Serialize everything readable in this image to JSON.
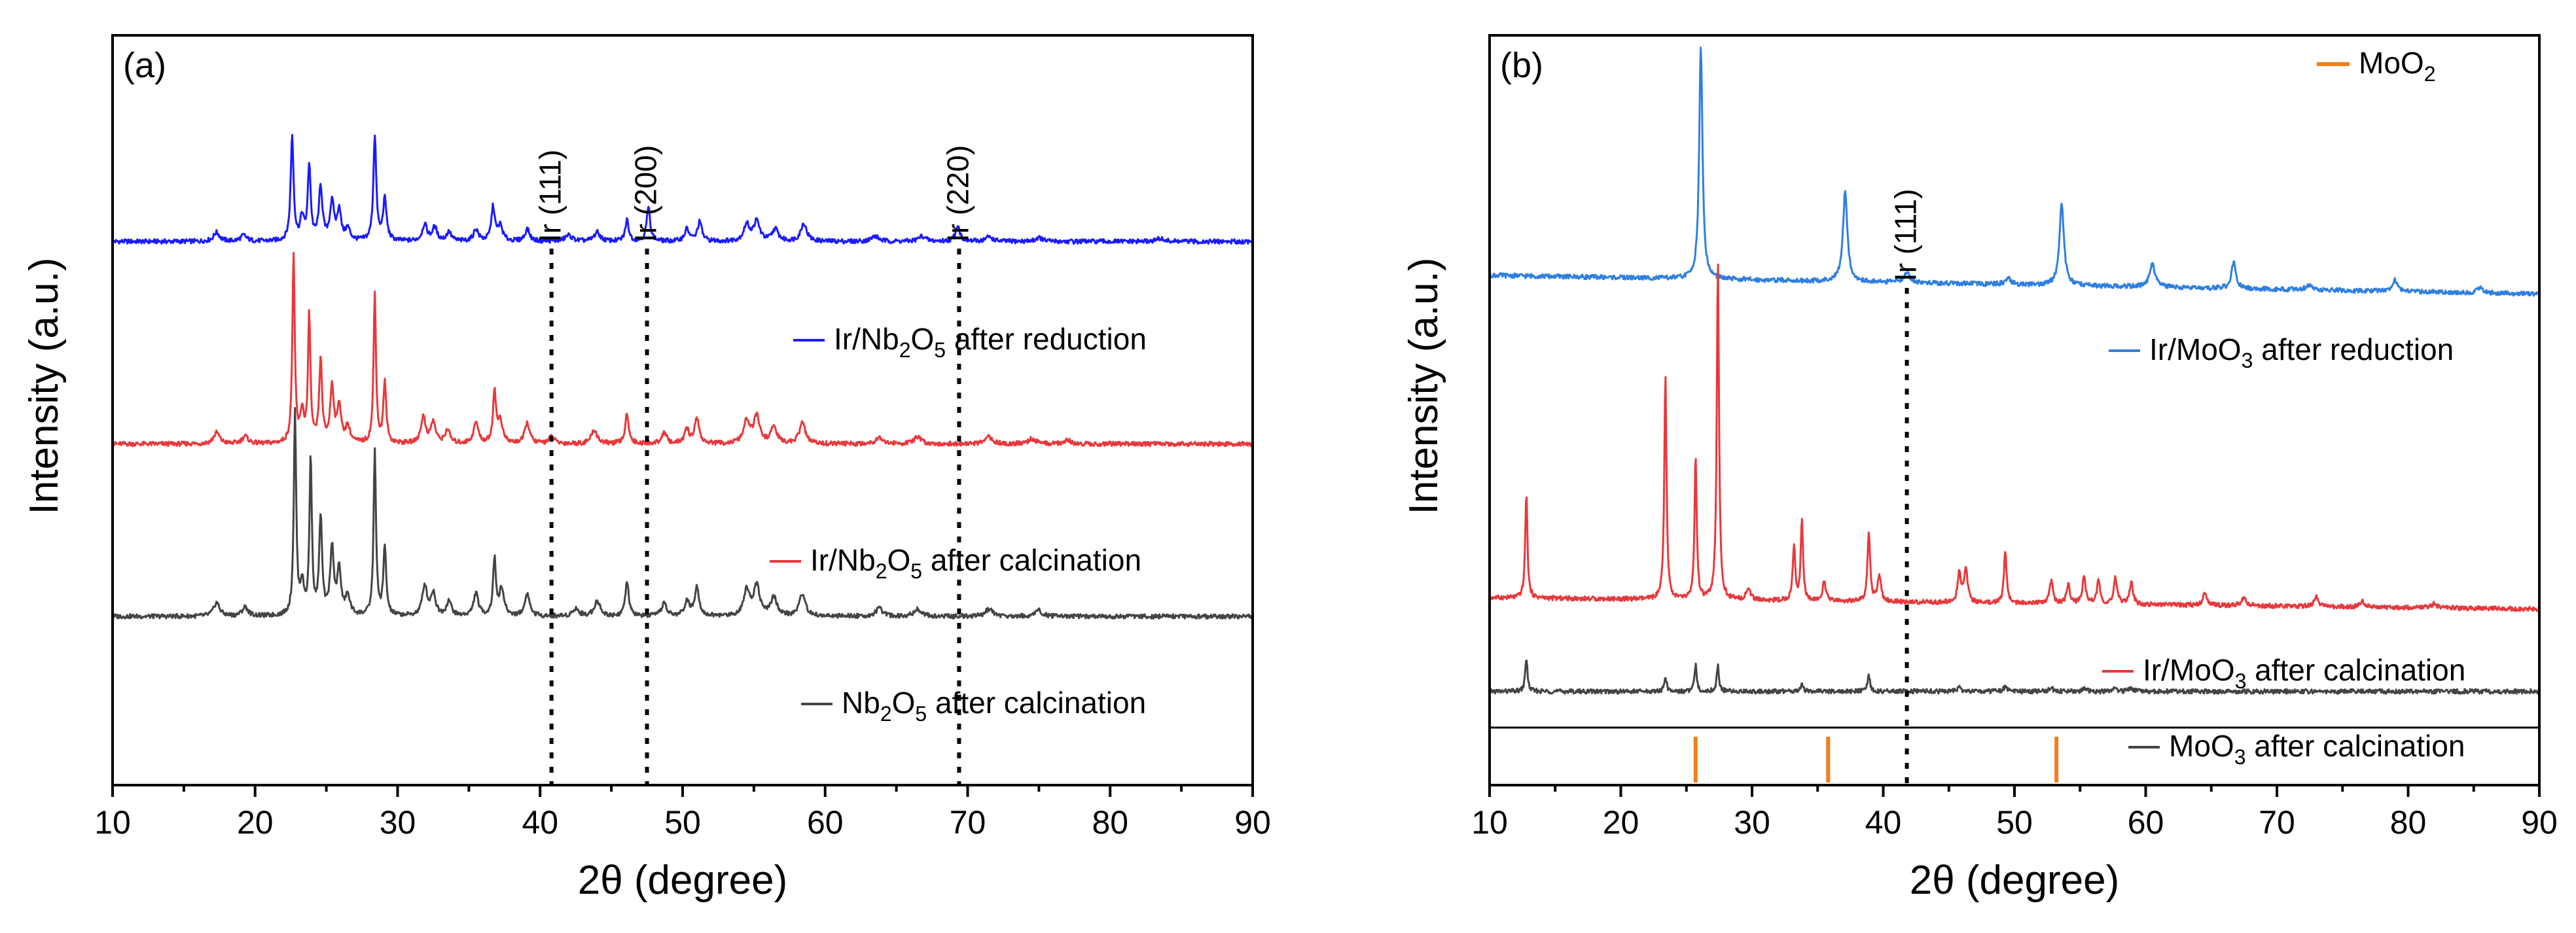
{
  "chart_data": [
    {
      "panel": "(a)",
      "type": "line",
      "xlabel": "2θ (degree)",
      "ylabel": "Intensity (a.u.)",
      "xlim": [
        10,
        90
      ],
      "ylim": [
        0,
        100
      ],
      "xticks": [
        10,
        20,
        30,
        40,
        50,
        60,
        70,
        80,
        90
      ],
      "y_tick_labels": false,
      "stacked_offsets": true,
      "series": [
        {
          "name": "Ir/Nb2O5 after reduction",
          "legend_main": "Ir/Nb",
          "legend_sub1": "2",
          "legend_mid": "O",
          "legend_sub2": "5",
          "legend_tail": " after reduction",
          "color": "#1a1aff",
          "baseline": 72.5,
          "peaks": [
            [
              17.3,
              1.2,
              0.25
            ],
            [
              19.2,
              0.8,
              0.25
            ],
            [
              22.6,
              14,
              0.12
            ],
            [
              23.3,
              3,
              0.15
            ],
            [
              23.8,
              10,
              0.12
            ],
            [
              24.6,
              7,
              0.15
            ],
            [
              25.4,
              5,
              0.18
            ],
            [
              25.9,
              4,
              0.15
            ],
            [
              26.5,
              1.6,
              0.2
            ],
            [
              28.4,
              14,
              0.12
            ],
            [
              29.1,
              5.5,
              0.15
            ],
            [
              31.9,
              2.2,
              0.2
            ],
            [
              32.6,
              1.8,
              0.2
            ],
            [
              33.6,
              1.2,
              0.2
            ],
            [
              35.5,
              1.6,
              0.2
            ],
            [
              36.7,
              4.5,
              0.15
            ],
            [
              37.2,
              2,
              0.2
            ],
            [
              39.1,
              1.6,
              0.2
            ],
            [
              42.0,
              0.8,
              0.3
            ],
            [
              44.0,
              1.2,
              0.25
            ],
            [
              46.1,
              2.8,
              0.15
            ],
            [
              47.6,
              4.5,
              0.15
            ],
            [
              50.3,
              1.6,
              0.2
            ],
            [
              51.2,
              2.6,
              0.18
            ],
            [
              54.5,
              2.2,
              0.25
            ],
            [
              55.2,
              2.6,
              0.25
            ],
            [
              56.5,
              1.6,
              0.25
            ],
            [
              58.5,
              2.4,
              0.25
            ],
            [
              63.5,
              0.7,
              0.3
            ],
            [
              66.8,
              0.7,
              0.3
            ],
            [
              69.3,
              2.2,
              0.18
            ],
            [
              71.5,
              0.6,
              0.3
            ],
            [
              75.0,
              0.5,
              0.3
            ],
            [
              83.5,
              0.4,
              0.3
            ]
          ]
        },
        {
          "name": "Ir/Nb2O5 after calcination",
          "legend_main": "Ir/Nb",
          "legend_sub1": "2",
          "legend_mid": "O",
          "legend_sub2": "5",
          "legend_tail": " after calcination",
          "color": "#e8383c",
          "baseline": 45.5,
          "peaks": [
            [
              17.3,
              1.5,
              0.25
            ],
            [
              19.3,
              1,
              0.25
            ],
            [
              22.7,
              25,
              0.1
            ],
            [
              23.3,
              4,
              0.15
            ],
            [
              23.8,
              17,
              0.1
            ],
            [
              24.6,
              11,
              0.12
            ],
            [
              25.4,
              7.5,
              0.15
            ],
            [
              25.9,
              5,
              0.15
            ],
            [
              26.5,
              2.2,
              0.2
            ],
            [
              28.4,
              20,
              0.1
            ],
            [
              29.1,
              8,
              0.12
            ],
            [
              31.8,
              3.5,
              0.2
            ],
            [
              32.5,
              2.8,
              0.2
            ],
            [
              33.5,
              1.8,
              0.2
            ],
            [
              35.5,
              2.8,
              0.2
            ],
            [
              36.8,
              7,
              0.12
            ],
            [
              37.2,
              3,
              0.2
            ],
            [
              39.1,
              2.8,
              0.2
            ],
            [
              40.8,
              0.9,
              0.25
            ],
            [
              43.8,
              1.8,
              0.25
            ],
            [
              46.1,
              4,
              0.15
            ],
            [
              48.7,
              1.5,
              0.2
            ],
            [
              50.3,
              1.8,
              0.2
            ],
            [
              51.0,
              3.5,
              0.18
            ],
            [
              54.5,
              3,
              0.25
            ],
            [
              55.2,
              3.5,
              0.25
            ],
            [
              56.4,
              2.2,
              0.25
            ],
            [
              58.4,
              2.8,
              0.25
            ],
            [
              63.8,
              0.9,
              0.3
            ],
            [
              66.5,
              0.9,
              0.3
            ],
            [
              71.5,
              0.9,
              0.3
            ],
            [
              74.5,
              0.7,
              0.3
            ],
            [
              77.0,
              0.5,
              0.3
            ]
          ]
        },
        {
          "name": "Nb2O5 after calcination",
          "legend_main": "Nb",
          "legend_sub1": "2",
          "legend_mid": "O",
          "legend_sub2": "5",
          "legend_tail": " after calcination",
          "color": "#444444",
          "baseline": 22.5,
          "peaks": [
            [
              17.3,
              1.8,
              0.25
            ],
            [
              19.3,
              1.2,
              0.25
            ],
            [
              22.8,
              27,
              0.1
            ],
            [
              23.3,
              4,
              0.15
            ],
            [
              23.9,
              21,
              0.1
            ],
            [
              24.6,
              13,
              0.12
            ],
            [
              25.4,
              9,
              0.15
            ],
            [
              25.9,
              6,
              0.15
            ],
            [
              26.5,
              2.5,
              0.2
            ],
            [
              28.4,
              22,
              0.1
            ],
            [
              29.1,
              9,
              0.12
            ],
            [
              31.9,
              4,
              0.2
            ],
            [
              32.5,
              3,
              0.2
            ],
            [
              33.6,
              2,
              0.2
            ],
            [
              35.5,
              3,
              0.2
            ],
            [
              36.8,
              7.5,
              0.12
            ],
            [
              37.3,
              3.5,
              0.2
            ],
            [
              39.1,
              3,
              0.2
            ],
            [
              42.5,
              1,
              0.25
            ],
            [
              44.0,
              2,
              0.25
            ],
            [
              46.1,
              4.5,
              0.15
            ],
            [
              48.7,
              1.8,
              0.2
            ],
            [
              50.3,
              2,
              0.2
            ],
            [
              51.0,
              4,
              0.18
            ],
            [
              54.5,
              3.5,
              0.25
            ],
            [
              55.2,
              4,
              0.25
            ],
            [
              56.4,
              2.5,
              0.25
            ],
            [
              58.4,
              3,
              0.25
            ],
            [
              63.8,
              1,
              0.3
            ],
            [
              66.5,
              1,
              0.3
            ],
            [
              71.5,
              1,
              0.3
            ],
            [
              75.0,
              0.8,
              0.3
            ]
          ]
        }
      ],
      "reference_lines": [
        {
          "x": 40.8,
          "label": "Ir (111)"
        },
        {
          "x": 47.5,
          "label": "Ir (200)"
        },
        {
          "x": 69.4,
          "label": "Ir (220)"
        }
      ]
    },
    {
      "panel": "(b)",
      "type": "line",
      "xlabel": "2θ (degree)",
      "ylabel": "Intensity (a.u.)",
      "xlim": [
        10,
        90
      ],
      "ylim": [
        0,
        100
      ],
      "xticks": [
        10,
        20,
        30,
        40,
        50,
        60,
        70,
        80,
        90
      ],
      "y_tick_labels": false,
      "stacked_offsets": true,
      "series": [
        {
          "name": "Ir/MoO3 after reduction",
          "legend_main": "Ir/MoO",
          "legend_sub1": "3",
          "legend_mid": "",
          "legend_sub2": "",
          "legend_tail": " after reduction",
          "color": "#2e7fe0",
          "baseline": 65.5,
          "slope": 2.5,
          "peaks": [
            [
              26.1,
              31,
              0.15
            ],
            [
              37.1,
              12,
              0.2
            ],
            [
              41.8,
              1.5,
              0.25
            ],
            [
              53.6,
              11,
              0.2
            ],
            [
              60.5,
              3,
              0.25
            ],
            [
              66.7,
              3.5,
              0.2
            ],
            [
              79.0,
              1.5,
              0.25
            ],
            [
              49.5,
              0.8,
              0.25
            ],
            [
              72.5,
              0.7,
              0.3
            ],
            [
              85.5,
              0.6,
              0.3
            ]
          ]
        },
        {
          "name": "Ir/MoO3 after calcination",
          "legend_main": "Ir/MoO",
          "legend_sub1": "3",
          "legend_mid": "",
          "legend_sub2": "",
          "legend_tail": " after calcination",
          "color": "#e8383c",
          "baseline": 23.5,
          "slope": 1.5,
          "peaks": [
            [
              12.8,
              14,
              0.1
            ],
            [
              23.4,
              30,
              0.1
            ],
            [
              25.7,
              19,
              0.1
            ],
            [
              27.4,
              45,
              0.1
            ],
            [
              29.7,
              1.5,
              0.2
            ],
            [
              33.2,
              7,
              0.12
            ],
            [
              33.8,
              11,
              0.1
            ],
            [
              35.5,
              2.5,
              0.15
            ],
            [
              38.9,
              9,
              0.12
            ],
            [
              39.7,
              3.5,
              0.15
            ],
            [
              45.8,
              4,
              0.15
            ],
            [
              46.3,
              4.5,
              0.15
            ],
            [
              49.3,
              7,
              0.12
            ],
            [
              52.8,
              3,
              0.15
            ],
            [
              54.1,
              2.5,
              0.15
            ],
            [
              55.3,
              3.5,
              0.15
            ],
            [
              56.4,
              3,
              0.15
            ],
            [
              57.7,
              3.5,
              0.15
            ],
            [
              58.9,
              3,
              0.15
            ],
            [
              64.5,
              1.5,
              0.2
            ],
            [
              67.5,
              1.2,
              0.2
            ],
            [
              73.0,
              1.3,
              0.2
            ],
            [
              76.5,
              0.8,
              0.2
            ],
            [
              82.0,
              0.6,
              0.2
            ]
          ]
        },
        {
          "name": "MoO3 after calcination",
          "legend_main": "MoO",
          "legend_sub1": "3",
          "legend_mid": "",
          "legend_sub2": "",
          "legend_tail": " after calcination",
          "color": "#444444",
          "baseline": 12.5,
          "slope": 0,
          "peaks": [
            [
              12.8,
              4.5,
              0.1
            ],
            [
              23.4,
              2,
              0.1
            ],
            [
              25.7,
              3.5,
              0.1
            ],
            [
              27.4,
              3.5,
              0.1
            ],
            [
              33.8,
              1,
              0.12
            ],
            [
              38.9,
              2,
              0.12
            ],
            [
              45.8,
              0.5,
              0.15
            ],
            [
              49.3,
              0.6,
              0.15
            ],
            [
              52.8,
              0.5,
              0.15
            ],
            [
              55.3,
              0.5,
              0.15
            ],
            [
              57.7,
              0.5,
              0.15
            ],
            [
              58.9,
              0.5,
              0.15
            ]
          ]
        }
      ],
      "reference_lines": [
        {
          "x": 41.8,
          "label": "Ir (111)"
        }
      ],
      "reference_pattern": {
        "name": "MoO2",
        "legend_main": "MoO",
        "legend_sub": "2",
        "color": "#f07f1b",
        "positions": [
          25.7,
          35.8,
          53.2
        ]
      }
    }
  ]
}
